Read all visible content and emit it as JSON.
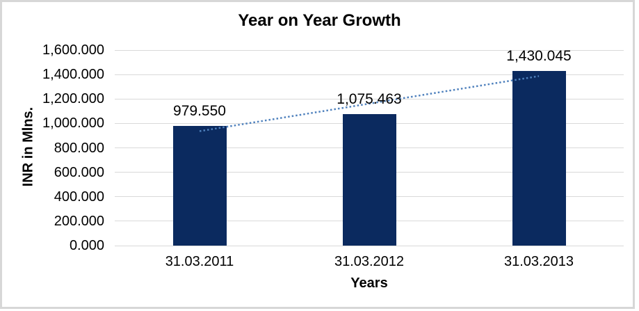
{
  "frame": {
    "background": "#FFFFFF",
    "border_color": "#D7D7D7"
  },
  "chart_data": {
    "type": "bar",
    "title": "Year on Year Growth",
    "xlabel": "Years",
    "ylabel": "INR in Mlns.",
    "categories": [
      "31.03.2011",
      "31.03.2012",
      "31.03.2013"
    ],
    "values": [
      979.55,
      1075.463,
      1430.045
    ],
    "value_labels": [
      "979.550",
      "1,075.463",
      "1,430.045"
    ],
    "ylim": [
      0,
      1600
    ],
    "yticks": [
      0,
      200,
      400,
      600,
      800,
      1000,
      1200,
      1400,
      1600
    ],
    "ytick_labels": [
      "0.000",
      "200.000",
      "400.000",
      "600.000",
      "800.000",
      "1,000.000",
      "1,200.000",
      "1,400.000",
      "1,600.000"
    ],
    "grid": "horizontal",
    "grid_color": "#D9D9D9",
    "legend": "none",
    "bar_color": "#0B2A5F",
    "text_color": "#000000",
    "trendline": {
      "type": "linear",
      "style": "dotted",
      "color": "#4F81BD"
    }
  }
}
